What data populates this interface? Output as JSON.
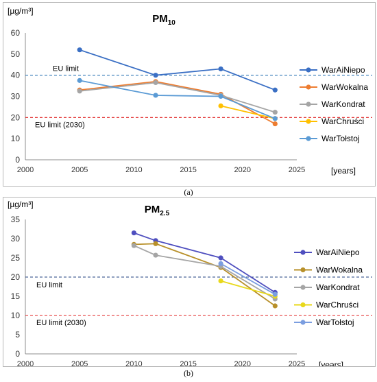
{
  "charts": [
    {
      "id": "a",
      "caption": "(a)",
      "chart_data": {
        "type": "line",
        "title_main": "PM",
        "title_sub": "10",
        "unit_label": "[µg/m³]",
        "xlabel": "[years]",
        "xlim": [
          2000,
          2025
        ],
        "ylim": [
          0,
          60
        ],
        "xticks": [
          2000,
          2005,
          2010,
          2015,
          2020,
          2025
        ],
        "yticks": [
          0,
          10,
          20,
          30,
          40,
          50,
          60
        ],
        "grid": false,
        "legend_position": "right",
        "series": [
          {
            "name": "WarAiNiepo",
            "color": "#3a6fc4",
            "points": [
              [
                2005,
                52
              ],
              [
                2012,
                40
              ],
              [
                2018,
                43
              ],
              [
                2023,
                33
              ]
            ]
          },
          {
            "name": "WarWokalna",
            "color": "#ed7d31",
            "points": [
              [
                2005,
                33
              ],
              [
                2012,
                37
              ],
              [
                2018,
                31
              ],
              [
                2023,
                17
              ]
            ]
          },
          {
            "name": "WarKondrat",
            "color": "#a5a5a5",
            "points": [
              [
                2005,
                32.5
              ],
              [
                2012,
                36.5
              ],
              [
                2018,
                30.5
              ],
              [
                2023,
                22.5
              ]
            ]
          },
          {
            "name": "WarChruści",
            "color": "#ffc000",
            "points": [
              [
                2018,
                25.5
              ],
              [
                2023,
                19.5
              ]
            ]
          },
          {
            "name": "WarTołstoj",
            "color": "#5b9bd5",
            "points": [
              [
                2005,
                37.5
              ],
              [
                2012,
                30.5
              ],
              [
                2018,
                30
              ],
              [
                2023,
                19.5
              ]
            ]
          }
        ],
        "reference_lines": [
          {
            "label": "EU limit",
            "value": 40,
            "color": "#2e75b6"
          },
          {
            "label": "EU limit (2030)",
            "value": 20,
            "color": "#e02020"
          }
        ]
      }
    },
    {
      "id": "b",
      "caption": "(b)",
      "chart_data": {
        "type": "line",
        "title_main": "PM",
        "title_sub": "2.5",
        "unit_label": "[µg/m³]",
        "xlabel": "[years]",
        "xlim": [
          2000,
          2025
        ],
        "ylim": [
          0,
          35
        ],
        "xticks": [
          2000,
          2005,
          2010,
          2015,
          2020,
          2025
        ],
        "yticks": [
          0,
          5,
          10,
          15,
          20,
          25,
          30,
          35
        ],
        "grid": false,
        "legend_position": "right",
        "series": [
          {
            "name": "WarAiNiepo",
            "color": "#4f4fbf",
            "points": [
              [
                2010,
                31.5
              ],
              [
                2012,
                29.5
              ],
              [
                2018,
                25
              ],
              [
                2023,
                16
              ]
            ]
          },
          {
            "name": "WarWokalna",
            "color": "#b8902a",
            "points": [
              [
                2010,
                28.5
              ],
              [
                2012,
                28.7
              ],
              [
                2018,
                22.5
              ],
              [
                2023,
                12.5
              ]
            ]
          },
          {
            "name": "WarKondrat",
            "color": "#a5a5a5",
            "points": [
              [
                2010,
                28.2
              ],
              [
                2012,
                25.7
              ],
              [
                2018,
                22.8
              ],
              [
                2023,
                14.3
              ]
            ]
          },
          {
            "name": "WarChruści",
            "color": "#e8d81a",
            "points": [
              [
                2018,
                19
              ],
              [
                2023,
                15
              ]
            ]
          },
          {
            "name": "WarTołstoj",
            "color": "#7b9ee0",
            "points": [
              [
                2018,
                23.5
              ],
              [
                2023,
                15.5
              ]
            ]
          }
        ],
        "reference_lines": [
          {
            "label": "EU limit",
            "value": 20,
            "color": "#1f3f7f"
          },
          {
            "label": "EU limit (2030)",
            "value": 10,
            "color": "#e02020"
          }
        ]
      }
    }
  ]
}
